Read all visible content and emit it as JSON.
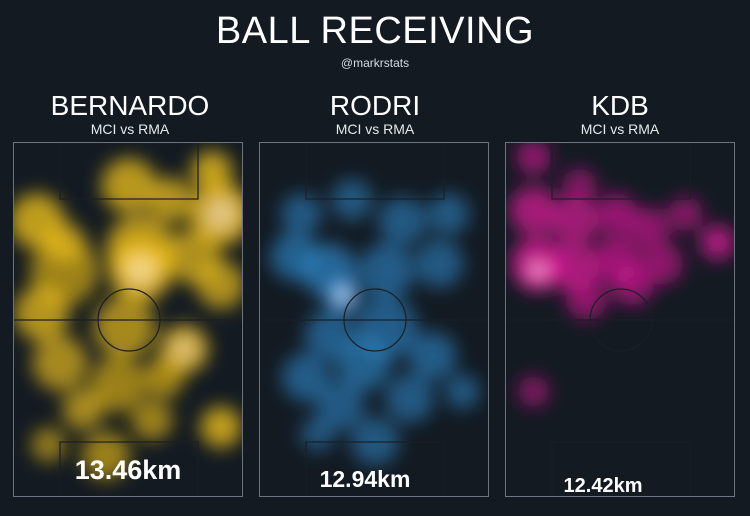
{
  "header": {
    "title": "BALL RECEIVING",
    "handle": "@markrstats"
  },
  "chart_data": [
    {
      "type": "heatmap",
      "player": "BERNARDO",
      "match": "MCI vs RMA",
      "distance": "13.46km",
      "color": "#f5c518",
      "hot_color": "#fff2fb",
      "hotspots": [
        [
          0.1,
          0.22,
          0.16,
          0.75
        ],
        [
          0.22,
          0.28,
          0.12,
          0.55
        ],
        [
          0.12,
          0.48,
          0.16,
          0.65
        ],
        [
          0.22,
          0.36,
          0.2,
          0.45
        ],
        [
          0.5,
          0.12,
          0.16,
          0.7
        ],
        [
          0.68,
          0.16,
          0.13,
          0.65
        ],
        [
          0.86,
          0.08,
          0.12,
          0.75
        ],
        [
          0.9,
          0.2,
          0.18,
          0.85
        ],
        [
          0.55,
          0.3,
          0.2,
          0.7
        ],
        [
          0.55,
          0.36,
          0.18,
          0.85
        ],
        [
          0.78,
          0.32,
          0.16,
          0.6
        ],
        [
          0.9,
          0.4,
          0.14,
          0.6
        ],
        [
          0.48,
          0.52,
          0.18,
          0.55
        ],
        [
          0.2,
          0.62,
          0.16,
          0.55
        ],
        [
          0.74,
          0.58,
          0.14,
          0.8
        ],
        [
          0.65,
          0.66,
          0.12,
          0.5
        ],
        [
          0.45,
          0.68,
          0.16,
          0.45
        ],
        [
          0.3,
          0.75,
          0.12,
          0.55
        ],
        [
          0.6,
          0.78,
          0.12,
          0.45
        ],
        [
          0.9,
          0.8,
          0.12,
          0.75
        ],
        [
          0.4,
          0.88,
          0.14,
          0.45
        ],
        [
          0.15,
          0.85,
          0.1,
          0.4
        ]
      ]
    },
    {
      "type": "heatmap",
      "player": "RODRI",
      "match": "MCI vs RMA",
      "distance": "12.94km",
      "color": "#2f8fd4",
      "hot_color": "#ffffff",
      "hotspots": [
        [
          0.18,
          0.2,
          0.12,
          0.35
        ],
        [
          0.4,
          0.16,
          0.12,
          0.3
        ],
        [
          0.62,
          0.22,
          0.14,
          0.35
        ],
        [
          0.82,
          0.2,
          0.12,
          0.35
        ],
        [
          0.15,
          0.32,
          0.14,
          0.45
        ],
        [
          0.3,
          0.36,
          0.16,
          0.55
        ],
        [
          0.36,
          0.43,
          0.1,
          1.0
        ],
        [
          0.55,
          0.36,
          0.16,
          0.4
        ],
        [
          0.78,
          0.34,
          0.14,
          0.35
        ],
        [
          0.55,
          0.52,
          0.18,
          0.4
        ],
        [
          0.3,
          0.54,
          0.14,
          0.4
        ],
        [
          0.2,
          0.66,
          0.14,
          0.4
        ],
        [
          0.45,
          0.62,
          0.16,
          0.45
        ],
        [
          0.75,
          0.6,
          0.14,
          0.4
        ],
        [
          0.35,
          0.74,
          0.14,
          0.35
        ],
        [
          0.65,
          0.72,
          0.14,
          0.35
        ],
        [
          0.88,
          0.7,
          0.1,
          0.35
        ],
        [
          0.5,
          0.84,
          0.14,
          0.3
        ],
        [
          0.25,
          0.82,
          0.1,
          0.25
        ]
      ]
    },
    {
      "type": "heatmap",
      "player": "KDB",
      "match": "MCI vs RMA",
      "distance": "12.42km",
      "color": "#e0179b",
      "hot_color": "#fff3fb",
      "hotspots": [
        [
          0.12,
          0.04,
          0.1,
          0.5
        ],
        [
          0.32,
          0.12,
          0.1,
          0.35
        ],
        [
          0.12,
          0.19,
          0.14,
          0.65
        ],
        [
          0.3,
          0.22,
          0.14,
          0.6
        ],
        [
          0.48,
          0.2,
          0.12,
          0.5
        ],
        [
          0.62,
          0.24,
          0.12,
          0.45
        ],
        [
          0.78,
          0.2,
          0.1,
          0.4
        ],
        [
          0.92,
          0.28,
          0.1,
          0.75
        ],
        [
          0.14,
          0.34,
          0.16,
          0.75
        ],
        [
          0.14,
          0.36,
          0.09,
          1.0
        ],
        [
          0.3,
          0.35,
          0.14,
          0.65
        ],
        [
          0.48,
          0.33,
          0.14,
          0.55
        ],
        [
          0.55,
          0.4,
          0.12,
          0.5
        ],
        [
          0.68,
          0.34,
          0.12,
          0.45
        ],
        [
          0.35,
          0.44,
          0.12,
          0.45
        ],
        [
          0.12,
          0.7,
          0.09,
          0.35
        ]
      ]
    }
  ]
}
